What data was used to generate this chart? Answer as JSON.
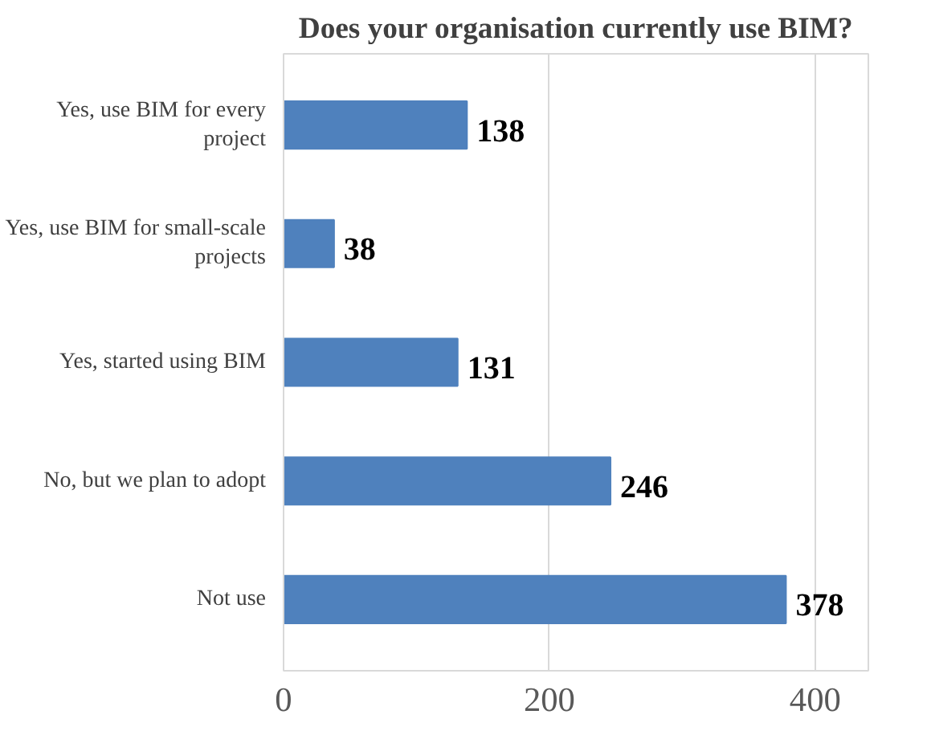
{
  "chart_data": {
    "type": "bar",
    "orientation": "horizontal",
    "title": "Does your organisation currently use BIM?",
    "categories": [
      "Yes, use BIM for every project",
      "Yes, use BIM for small-scale projects",
      "Yes, started using BIM",
      "No, but we plan to adopt",
      "Not use"
    ],
    "values": [
      138,
      38,
      131,
      246,
      378
    ],
    "color": "#4f81bd",
    "xlim": [
      0,
      440
    ],
    "xticks": [
      0,
      200,
      400
    ],
    "grid": "x",
    "data_labels": true
  }
}
